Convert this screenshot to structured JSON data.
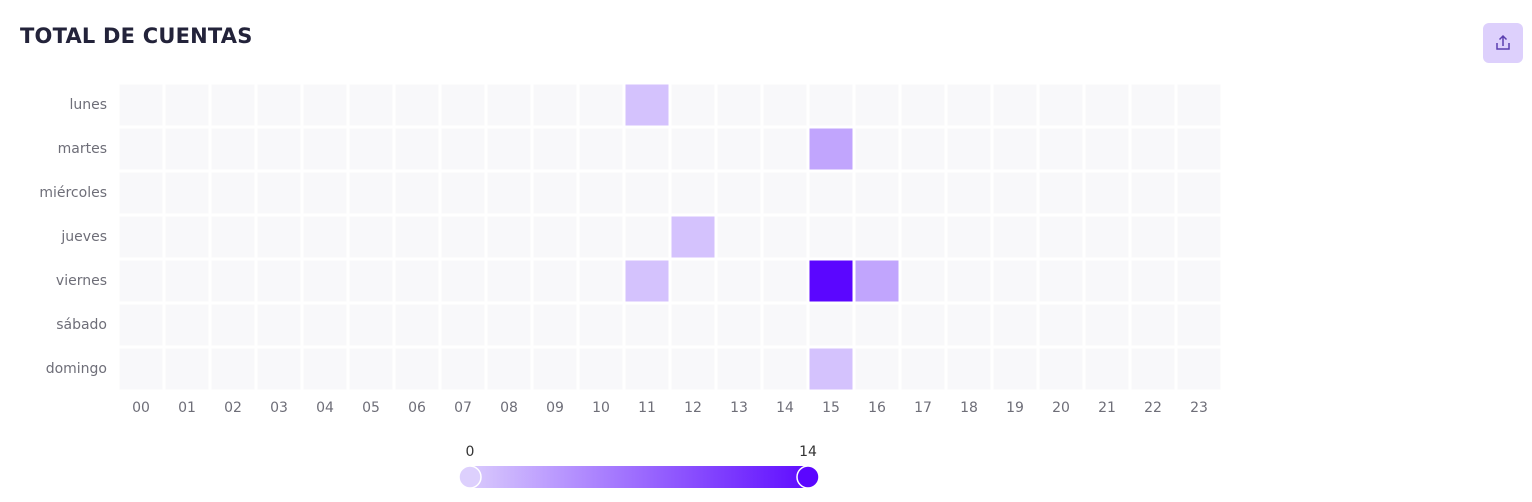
{
  "chart_data": {
    "type": "heatmap",
    "title": "TOTAL DE CUENTAS",
    "x_categories": [
      "00",
      "01",
      "02",
      "03",
      "04",
      "05",
      "06",
      "07",
      "08",
      "09",
      "10",
      "11",
      "12",
      "13",
      "14",
      "15",
      "16",
      "17",
      "18",
      "19",
      "20",
      "21",
      "22",
      "23"
    ],
    "y_categories": [
      "lunes",
      "martes",
      "miércoles",
      "jueves",
      "viernes",
      "sábado",
      "domingo"
    ],
    "values": [
      [
        0,
        0,
        0,
        0,
        0,
        0,
        0,
        0,
        0,
        0,
        0,
        1,
        0,
        0,
        0,
        0,
        0,
        0,
        0,
        0,
        0,
        0,
        0,
        0
      ],
      [
        0,
        0,
        0,
        0,
        0,
        0,
        0,
        0,
        0,
        0,
        0,
        0,
        0,
        0,
        0,
        3,
        0,
        0,
        0,
        0,
        0,
        0,
        0,
        0
      ],
      [
        0,
        0,
        0,
        0,
        0,
        0,
        0,
        0,
        0,
        0,
        0,
        0,
        0,
        0,
        0,
        0,
        0,
        0,
        0,
        0,
        0,
        0,
        0,
        0
      ],
      [
        0,
        0,
        0,
        0,
        0,
        0,
        0,
        0,
        0,
        0,
        0,
        0,
        1,
        0,
        0,
        0,
        0,
        0,
        0,
        0,
        0,
        0,
        0,
        0
      ],
      [
        0,
        0,
        0,
        0,
        0,
        0,
        0,
        0,
        0,
        0,
        0,
        1,
        0,
        0,
        0,
        14,
        3,
        0,
        0,
        0,
        0,
        0,
        0,
        0
      ],
      [
        0,
        0,
        0,
        0,
        0,
        0,
        0,
        0,
        0,
        0,
        0,
        0,
        0,
        0,
        0,
        0,
        0,
        0,
        0,
        0,
        0,
        0,
        0,
        0
      ],
      [
        0,
        0,
        0,
        0,
        0,
        0,
        0,
        0,
        0,
        0,
        0,
        0,
        0,
        0,
        0,
        1,
        0,
        0,
        0,
        0,
        0,
        0,
        0,
        0
      ]
    ],
    "visual_map": {
      "min": 0,
      "max": 14,
      "colors": [
        "#ddd0fd",
        "#5b06ff"
      ]
    },
    "zero_color": "#f8f8fa"
  }
}
